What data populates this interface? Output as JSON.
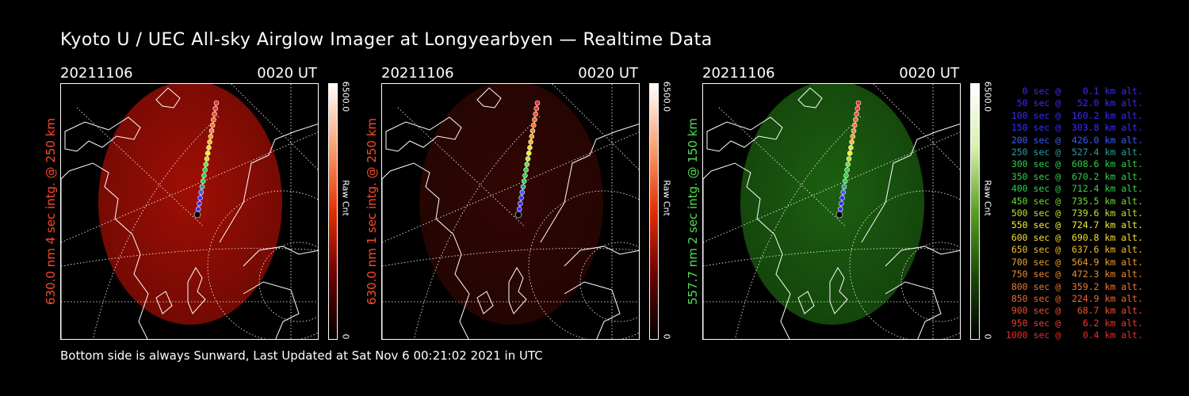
{
  "title": "Kyoto U / UEC All-sky Airglow Imager at Longyearbyen — Realtime Data",
  "footer": "Bottom side is always Sunward, Last Updated at Sat Nov  6 00:21:02 2021 in UTC",
  "panels": [
    {
      "date": "20211106",
      "time": "0020 UT",
      "ylabel": "630.0 nm 4 sec intg. @ 250 km",
      "label_color": "#ff4a2a",
      "colorbar_max": "6500.0",
      "colorbar_min": "0",
      "colorbar_label": "Raw Cnt",
      "tint": "#b01005",
      "tint_opacity": 0.9
    },
    {
      "date": "20211106",
      "time": "0020 UT",
      "ylabel": "630.0 nm 1 sec intg. @ 250 km",
      "label_color": "#ff4a2a",
      "colorbar_max": "6500.0",
      "colorbar_min": "0",
      "colorbar_label": "Raw Cnt",
      "tint": "#3a0804",
      "tint_opacity": 0.85
    },
    {
      "date": "20211106",
      "time": "0020 UT",
      "ylabel": "557.7 nm 2 sec intg. @ 150 km",
      "label_color": "#4fe04f",
      "colorbar_max": "6500.0",
      "colorbar_min": "0",
      "colorbar_label": "Raw Cnt",
      "tint": "#1f6a12",
      "tint_opacity": 0.9
    }
  ],
  "legend": [
    {
      "text": "   0 sec @    0.1 km alt.",
      "color": "#3a2cff"
    },
    {
      "text": "  50 sec @   52.0 km alt.",
      "color": "#3a2cff"
    },
    {
      "text": " 100 sec @  160.2 km alt.",
      "color": "#3a2cff"
    },
    {
      "text": " 150 sec @  303.8 km alt.",
      "color": "#3a2cff"
    },
    {
      "text": " 200 sec @  426.0 km alt.",
      "color": "#3a5cff"
    },
    {
      "text": " 250 sec @  527.4 km alt.",
      "color": "#2e9ca0"
    },
    {
      "text": " 300 sec @  608.6 km alt.",
      "color": "#2ed24a"
    },
    {
      "text": " 350 sec @  670.2 km alt.",
      "color": "#2ed24a"
    },
    {
      "text": " 400 sec @  712.4 km alt.",
      "color": "#2ed24a"
    },
    {
      "text": " 450 sec @  735.5 km alt.",
      "color": "#6ae02e"
    },
    {
      "text": " 500 sec @  739.6 km alt.",
      "color": "#b8e82e"
    },
    {
      "text": " 550 sec @  724.7 km alt.",
      "color": "#f0f02e"
    },
    {
      "text": " 600 sec @  690.8 km alt.",
      "color": "#f0e02e"
    },
    {
      "text": " 650 sec @  637.6 km alt.",
      "color": "#f0c02e"
    },
    {
      "text": " 700 sec @  564.9 km alt.",
      "color": "#f0a02e"
    },
    {
      "text": " 750 sec @  472.3 km alt.",
      "color": "#f08a2e"
    },
    {
      "text": " 800 sec @  359.2 km alt.",
      "color": "#f0782e"
    },
    {
      "text": " 850 sec @  224.9 km alt.",
      "color": "#f0682e"
    },
    {
      "text": " 900 sec @   68.7 km alt.",
      "color": "#f0502e"
    },
    {
      "text": " 950 sec @    6.2 km alt.",
      "color": "#f03a2e"
    },
    {
      "text": "1000 sec @    0.4 km alt.",
      "color": "#f02a2a"
    }
  ]
}
